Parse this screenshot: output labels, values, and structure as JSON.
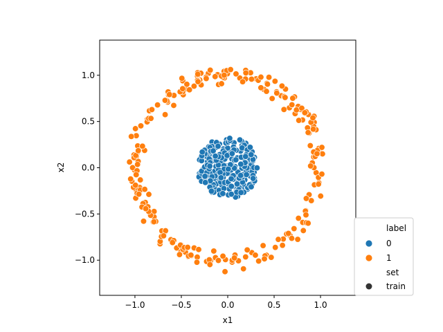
{
  "chart_data": {
    "type": "scatter",
    "xlabel": "x1",
    "ylabel": "x2",
    "xlim": [
      -1.38,
      1.38
    ],
    "ylim": [
      -1.38,
      1.38
    ],
    "xticks": [
      -1.0,
      -0.5,
      0.0,
      0.5,
      1.0
    ],
    "yticks": [
      -1.0,
      -0.5,
      0.0,
      0.5,
      1.0
    ],
    "xtick_labels": [
      "−1.0",
      "−0.5",
      "0.0",
      "0.5",
      "1.0"
    ],
    "ytick_labels": [
      "−1.0",
      "−0.5",
      "0.0",
      "0.5",
      "1.0"
    ],
    "grid": false,
    "legend": {
      "placement": "outside-lower-right",
      "hue_title": "label",
      "style_title": "set",
      "style_entries": [
        "train"
      ]
    },
    "series": [
      {
        "name": "0",
        "color": "#1f77b4",
        "shape": "disk",
        "count": 250,
        "center": [
          0.0,
          0.0
        ],
        "radius": 0.33
      },
      {
        "name": "1",
        "color": "#ff7f0e",
        "shape": "ring",
        "count": 250,
        "center": [
          0.0,
          0.0
        ],
        "radius": 1.0,
        "noise": 0.08
      }
    ]
  }
}
